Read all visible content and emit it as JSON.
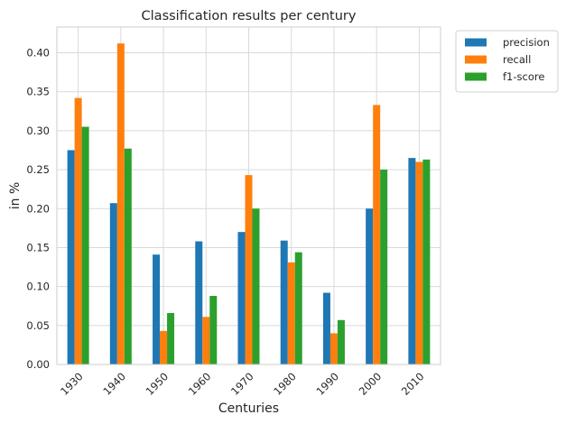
{
  "chart_data": {
    "type": "bar",
    "title": "Classification results per century",
    "xlabel": "Centuries",
    "ylabel": "in %",
    "categories": [
      "1930",
      "1940",
      "1950",
      "1960",
      "1970",
      "1980",
      "1990",
      "2000",
      "2010"
    ],
    "series": [
      {
        "name": "precision",
        "color": "#1f77b4",
        "values": [
          0.275,
          0.207,
          0.141,
          0.158,
          0.17,
          0.159,
          0.092,
          0.2,
          0.265
        ]
      },
      {
        "name": "recall",
        "color": "#ff7f0e",
        "values": [
          0.342,
          0.412,
          0.043,
          0.061,
          0.243,
          0.131,
          0.04,
          0.333,
          0.26
        ]
      },
      {
        "name": "f1-score",
        "color": "#2ca02c",
        "values": [
          0.305,
          0.277,
          0.066,
          0.088,
          0.2,
          0.144,
          0.057,
          0.25,
          0.263
        ]
      }
    ],
    "yticks": [
      "0.00",
      "0.05",
      "0.10",
      "0.15",
      "0.20",
      "0.25",
      "0.30",
      "0.35",
      "0.40"
    ],
    "ylim": [
      0,
      0.433
    ],
    "grid": true,
    "legend_position": "outside top-right"
  }
}
